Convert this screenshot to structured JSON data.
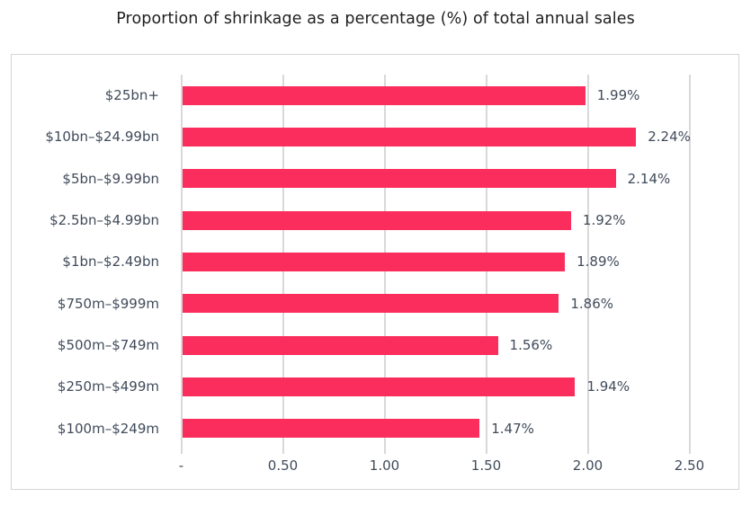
{
  "chart_data": {
    "type": "bar",
    "orientation": "horizontal",
    "title": "Proportion of shrinkage as a percentage (%) of total annual sales",
    "categories": [
      "$25bn+",
      "$10bn–$24.99bn",
      "$5bn–$9.99bn",
      "$2.5bn–$4.99bn",
      "$1bn–$2.49bn",
      "$750m–$999m",
      "$500m–$749m",
      "$250m–$499m",
      "$100m–$249m"
    ],
    "values": [
      1.99,
      2.24,
      2.14,
      1.92,
      1.89,
      1.86,
      1.56,
      1.94,
      1.47
    ],
    "value_labels": [
      "1.99%",
      "2.24%",
      "2.14%",
      "1.92%",
      "1.89%",
      "1.86%",
      "1.56%",
      "1.94%",
      "1.47%"
    ],
    "xlabel": "",
    "ylabel": "",
    "xlim": [
      0,
      2.5
    ],
    "x_ticks": {
      "values": [
        0,
        0.5,
        1.0,
        1.5,
        2.0,
        2.5
      ],
      "labels": [
        "-",
        "0.50",
        "1.00",
        "1.50",
        "2.00",
        "2.50"
      ]
    },
    "grid": "vertical",
    "legend": "none",
    "colors": {
      "bar": "#FB2D5C",
      "label_text": "#404B5A",
      "title_text": "#1F1F1F",
      "gridline": "#D9D9D9",
      "frame_border": "#D6D6D6",
      "background": "#FFFFFF"
    }
  }
}
